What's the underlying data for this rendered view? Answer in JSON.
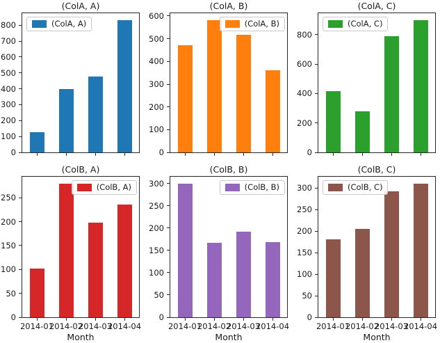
{
  "figure": {
    "background": "#ffffff",
    "grid_layout": "2 rows x 3 columns",
    "categories_axis_label": "Month"
  },
  "chart_data": [
    {
      "type": "bar",
      "title": "(ColA, A)",
      "legend": {
        "label": "(ColA, A)",
        "position": "upper-left"
      },
      "color": "#1f77b4",
      "categories": [
        "2014-01",
        "2014-02",
        "2014-03",
        "2014-04"
      ],
      "values": [
        127,
        397,
        477,
        833
      ],
      "ylim": [
        0,
        875
      ],
      "yticks": [
        0,
        100,
        200,
        300,
        400,
        500,
        600,
        700,
        800
      ],
      "xlabel": "",
      "show_xtick_labels": false,
      "grid": false
    },
    {
      "type": "bar",
      "title": "(ColA, B)",
      "legend": {
        "label": "(ColA, B)",
        "position": "upper-right"
      },
      "color": "#ff7f0e",
      "categories": [
        "2014-01",
        "2014-02",
        "2014-03",
        "2014-04"
      ],
      "values": [
        470,
        583,
        517,
        360
      ],
      "ylim": [
        0,
        612
      ],
      "yticks": [
        0,
        100,
        200,
        300,
        400,
        500,
        600
      ],
      "xlabel": "",
      "show_xtick_labels": false,
      "grid": false
    },
    {
      "type": "bar",
      "title": "(ColA, C)",
      "legend": {
        "label": "(ColA, C)",
        "position": "upper-left"
      },
      "color": "#2ca02c",
      "categories": [
        "2014-01",
        "2014-02",
        "2014-03",
        "2014-04"
      ],
      "values": [
        418,
        280,
        790,
        900
      ],
      "ylim": [
        0,
        945
      ],
      "yticks": [
        0,
        200,
        400,
        600,
        800
      ],
      "xlabel": "",
      "show_xtick_labels": false,
      "grid": false
    },
    {
      "type": "bar",
      "title": "(ColB, A)",
      "legend": {
        "label": "(ColB, A)",
        "position": "upper-right"
      },
      "color": "#d62728",
      "categories": [
        "2014-01",
        "2014-02",
        "2014-03",
        "2014-04"
      ],
      "values": [
        102,
        280,
        198,
        236
      ],
      "ylim": [
        0,
        294
      ],
      "yticks": [
        0,
        50,
        100,
        150,
        200,
        250
      ],
      "xlabel": "Month",
      "show_xtick_labels": true,
      "grid": false
    },
    {
      "type": "bar",
      "title": "(ColB, B)",
      "legend": {
        "label": "(ColB, B)",
        "position": "upper-right"
      },
      "color": "#9467bd",
      "categories": [
        "2014-01",
        "2014-02",
        "2014-03",
        "2014-04"
      ],
      "values": [
        300,
        167,
        192,
        169
      ],
      "ylim": [
        0,
        315
      ],
      "yticks": [
        0,
        50,
        100,
        150,
        200,
        250,
        300
      ],
      "xlabel": "Month",
      "show_xtick_labels": true,
      "grid": false
    },
    {
      "type": "bar",
      "title": "(ColB, C)",
      "legend": {
        "label": "(ColB, C)",
        "position": "upper-left"
      },
      "color": "#8c564b",
      "categories": [
        "2014-01",
        "2014-02",
        "2014-03",
        "2014-04"
      ],
      "values": [
        181,
        205,
        292,
        310
      ],
      "ylim": [
        0,
        326
      ],
      "yticks": [
        0,
        50,
        100,
        150,
        200,
        250,
        300
      ],
      "xlabel": "Month",
      "show_xtick_labels": true,
      "grid": false
    }
  ]
}
